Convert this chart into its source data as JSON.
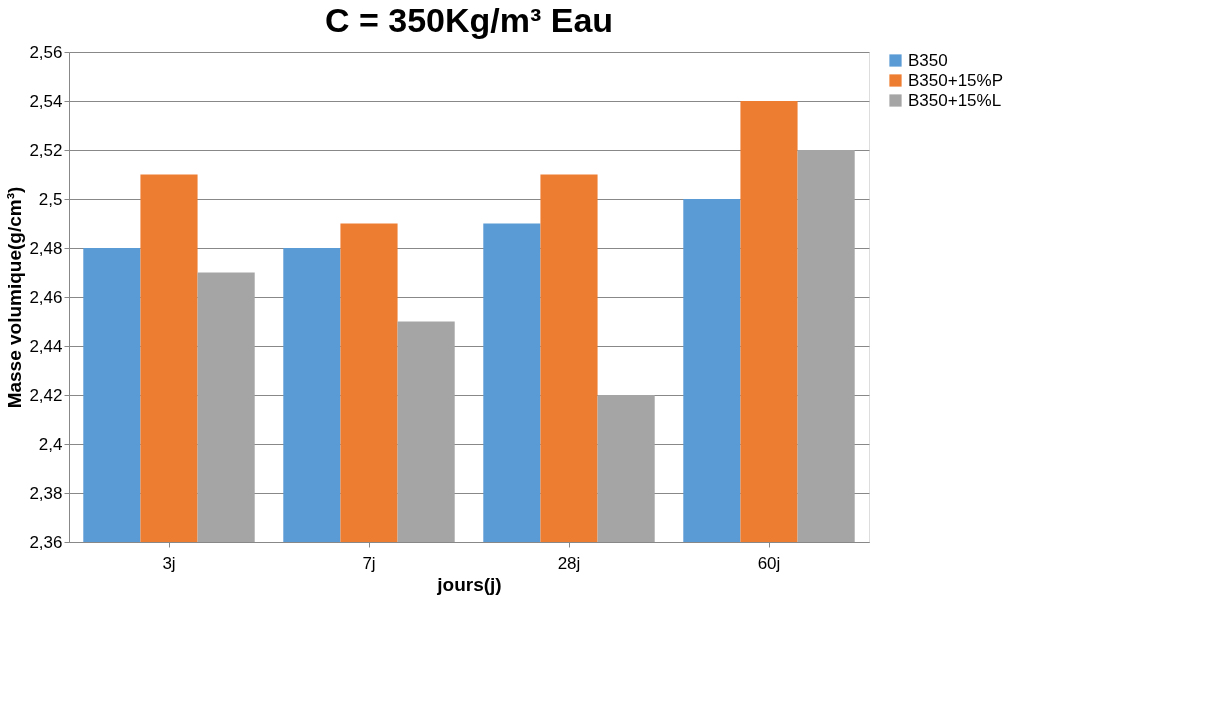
{
  "chart_data": {
    "type": "bar",
    "title": "C = 350Kg/m³        Eau",
    "xlabel": "jours(j)",
    "ylabel": "Masse volumique(g/cm³)",
    "categories": [
      "3j",
      "7j",
      "28j",
      "60j"
    ],
    "series": [
      {
        "name": "B350",
        "color": "#5b9bd5",
        "values": [
          2.48,
          2.48,
          2.49,
          2.5
        ]
      },
      {
        "name": "B350+15%P",
        "color": "#ed7d31",
        "values": [
          2.51,
          2.49,
          2.51,
          2.54
        ]
      },
      {
        "name": "B350+15%L",
        "color": "#a5a5a5",
        "values": [
          2.47,
          2.45,
          2.42,
          2.52
        ]
      }
    ],
    "ylim": [
      2.36,
      2.56
    ],
    "yticks": [
      {
        "value": 2.36,
        "label": "2,36"
      },
      {
        "value": 2.38,
        "label": "2,38"
      },
      {
        "value": 2.4,
        "label": "2,4"
      },
      {
        "value": 2.42,
        "label": "2,42"
      },
      {
        "value": 2.44,
        "label": "2,44"
      },
      {
        "value": 2.46,
        "label": "2,46"
      },
      {
        "value": 2.48,
        "label": "2,48"
      },
      {
        "value": 2.5,
        "label": "2,5"
      },
      {
        "value": 2.52,
        "label": "2,52"
      },
      {
        "value": 2.54,
        "label": "2,54"
      },
      {
        "value": 2.56,
        "label": "2,56"
      }
    ],
    "grid": "y",
    "legend": "top right"
  }
}
